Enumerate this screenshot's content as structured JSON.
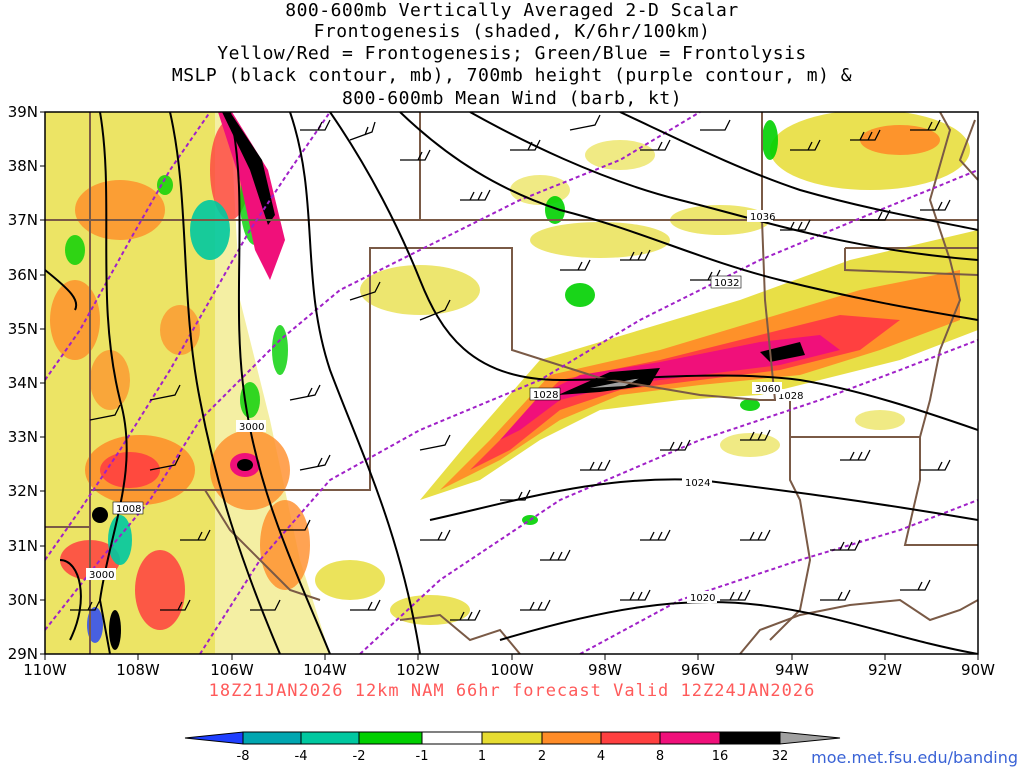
{
  "title_lines": [
    "800-600mb Vertically Averaged 2-D Scalar",
    "Frontogenesis (shaded, K/6hr/100km)",
    "Yellow/Red = Frontogenesis;  Green/Blue = Frontolysis",
    "MSLP (black contour, mb), 700mb height (purple contour, m) &",
    "800-600mb Mean Wind (barb, kt)"
  ],
  "forecast_label": "18Z21JAN2026 12km NAM 66hr forecast Valid 12Z24JAN2026",
  "credit": "moe.met.fsu.edu/banding",
  "lat_labels": [
    "39N",
    "38N",
    "37N",
    "36N",
    "35N",
    "34N",
    "33N",
    "32N",
    "31N",
    "30N",
    "29N"
  ],
  "lon_labels": [
    "110W",
    "108W",
    "106W",
    "104W",
    "102W",
    "100W",
    "98W",
    "96W",
    "94W",
    "92W",
    "90W"
  ],
  "contour_labels": {
    "mslp": [
      "1036",
      "1032",
      "1028",
      "1028",
      "1024",
      "1020",
      "1008"
    ],
    "height": [
      "3000",
      "3000",
      "3060"
    ]
  },
  "colorbar": {
    "ticks": [
      "-8",
      "-4",
      "-2",
      "-1",
      "1",
      "2",
      "4",
      "8",
      "16",
      "32"
    ],
    "colors": [
      "#1f3fff",
      "#00a6b0",
      "#00c8a0",
      "#00d000",
      "#ffffff",
      "#e6dc32",
      "#ff8c28",
      "#ff4040",
      "#f0107a",
      "#000000",
      "#a0a0a0"
    ]
  },
  "colors": {
    "frontogenesis_yellow": "#e6dc32",
    "frontogenesis_orange": "#ff8c28",
    "frontogenesis_red": "#ff4040",
    "frontogenesis_magenta": "#f0107a",
    "frontolysis_green": "#00d000",
    "mslp_contour": "#000000",
    "height_contour": "#a020c8",
    "borders": "#7a5a46"
  }
}
